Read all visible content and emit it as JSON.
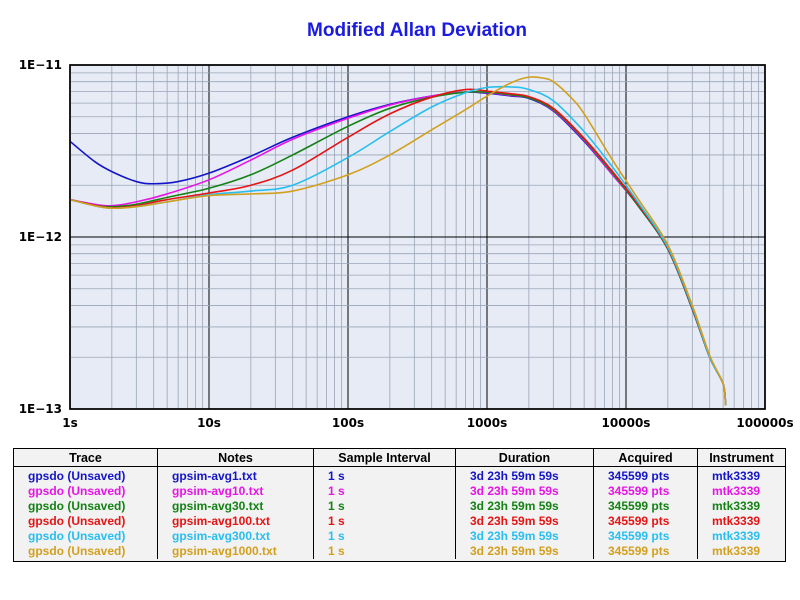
{
  "chart_data": {
    "type": "line",
    "title": "Modified Allan Deviation",
    "xscale": "log",
    "yscale": "log",
    "xlim": [
      1,
      100000
    ],
    "ylim": [
      1e-13,
      1e-11
    ],
    "x_tick_labels": [
      "1s",
      "10s",
      "100s",
      "1000s",
      "10000s",
      "100000s"
    ],
    "y_tick_labels": [
      "1E−11",
      "1E−12",
      "1E−13"
    ],
    "grid": true,
    "series": [
      {
        "name": "gpsdo (Unsaved)",
        "color": "#1414c8",
        "points": [
          [
            1,
            3.6e-12
          ],
          [
            1.5,
            2.75e-12
          ],
          [
            2,
            2.4e-12
          ],
          [
            3,
            2.1e-12
          ],
          [
            4,
            2.04e-12
          ],
          [
            6,
            2.1e-12
          ],
          [
            10,
            2.35e-12
          ],
          [
            20,
            2.95e-12
          ],
          [
            40,
            3.8e-12
          ],
          [
            100,
            5e-12
          ],
          [
            200,
            5.9e-12
          ],
          [
            400,
            6.6e-12
          ],
          [
            700,
            6.95e-12
          ],
          [
            1000,
            6.85e-12
          ],
          [
            1500,
            6.6e-12
          ],
          [
            2000,
            6.4e-12
          ],
          [
            3000,
            5.4e-12
          ],
          [
            5000,
            3.6e-12
          ],
          [
            8000,
            2.3e-12
          ],
          [
            12000,
            1.55e-12
          ],
          [
            20000,
            8.5e-13
          ],
          [
            30000,
            3.8e-13
          ],
          [
            40000,
            2e-13
          ],
          [
            50000,
            1.4e-13
          ],
          [
            52000,
            1.05e-13
          ]
        ]
      },
      {
        "name": "gpsdo (Unsaved)",
        "color": "#e614e6",
        "points": [
          [
            1,
            1.65e-12
          ],
          [
            1.5,
            1.55e-12
          ],
          [
            2,
            1.52e-12
          ],
          [
            3,
            1.6e-12
          ],
          [
            5,
            1.78e-12
          ],
          [
            10,
            2.15e-12
          ],
          [
            20,
            2.8e-12
          ],
          [
            40,
            3.7e-12
          ],
          [
            100,
            4.9e-12
          ],
          [
            200,
            5.85e-12
          ],
          [
            400,
            6.6e-12
          ],
          [
            700,
            6.95e-12
          ],
          [
            1000,
            6.9e-12
          ],
          [
            1500,
            6.65e-12
          ],
          [
            2000,
            6.45e-12
          ],
          [
            3000,
            5.45e-12
          ],
          [
            5000,
            3.65e-12
          ],
          [
            8000,
            2.3e-12
          ],
          [
            12000,
            1.55e-12
          ],
          [
            20000,
            8.5e-13
          ],
          [
            30000,
            3.8e-13
          ],
          [
            40000,
            2e-13
          ],
          [
            50000,
            1.4e-13
          ],
          [
            52000,
            1.05e-13
          ]
        ]
      },
      {
        "name": "gpsdo (Unsaved)",
        "color": "#148214",
        "points": [
          [
            1,
            1.65e-12
          ],
          [
            1.5,
            1.53e-12
          ],
          [
            2,
            1.5e-12
          ],
          [
            3,
            1.55e-12
          ],
          [
            5,
            1.7e-12
          ],
          [
            10,
            1.92e-12
          ],
          [
            20,
            2.3e-12
          ],
          [
            40,
            3e-12
          ],
          [
            100,
            4.4e-12
          ],
          [
            200,
            5.6e-12
          ],
          [
            400,
            6.5e-12
          ],
          [
            700,
            6.95e-12
          ],
          [
            1000,
            6.95e-12
          ],
          [
            1500,
            6.7e-12
          ],
          [
            2000,
            6.45e-12
          ],
          [
            3000,
            5.5e-12
          ],
          [
            5000,
            3.7e-12
          ],
          [
            8000,
            2.35e-12
          ],
          [
            12000,
            1.55e-12
          ],
          [
            20000,
            8.5e-13
          ],
          [
            30000,
            3.8e-13
          ],
          [
            40000,
            2e-13
          ],
          [
            50000,
            1.4e-13
          ],
          [
            52000,
            1.05e-13
          ]
        ]
      },
      {
        "name": "gpsdo (Unsaved)",
        "color": "#e61414",
        "points": [
          [
            1,
            1.65e-12
          ],
          [
            1.5,
            1.53e-12
          ],
          [
            2,
            1.48e-12
          ],
          [
            3,
            1.52e-12
          ],
          [
            5,
            1.65e-12
          ],
          [
            10,
            1.8e-12
          ],
          [
            20,
            2e-12
          ],
          [
            40,
            2.45e-12
          ],
          [
            100,
            3.8e-12
          ],
          [
            200,
            5.2e-12
          ],
          [
            400,
            6.5e-12
          ],
          [
            700,
            7.2e-12
          ],
          [
            1000,
            7.05e-12
          ],
          [
            1500,
            6.8e-12
          ],
          [
            2000,
            6.55e-12
          ],
          [
            3000,
            5.6e-12
          ],
          [
            5000,
            3.75e-12
          ],
          [
            8000,
            2.4e-12
          ],
          [
            12000,
            1.58e-12
          ],
          [
            20000,
            8.6e-13
          ],
          [
            30000,
            3.85e-13
          ],
          [
            40000,
            2e-13
          ],
          [
            50000,
            1.4e-13
          ],
          [
            52000,
            1.05e-13
          ]
        ]
      },
      {
        "name": "gpsdo (Unsaved)",
        "color": "#28bef0",
        "points": [
          [
            1,
            1.65e-12
          ],
          [
            1.5,
            1.52e-12
          ],
          [
            2,
            1.47e-12
          ],
          [
            3,
            1.5e-12
          ],
          [
            5,
            1.6e-12
          ],
          [
            10,
            1.76e-12
          ],
          [
            20,
            1.85e-12
          ],
          [
            40,
            2e-12
          ],
          [
            100,
            2.9e-12
          ],
          [
            200,
            4.1e-12
          ],
          [
            400,
            5.7e-12
          ],
          [
            700,
            6.9e-12
          ],
          [
            1000,
            7.4e-12
          ],
          [
            1500,
            7.45e-12
          ],
          [
            2000,
            7.2e-12
          ],
          [
            3000,
            6.2e-12
          ],
          [
            5000,
            4.1e-12
          ],
          [
            8000,
            2.55e-12
          ],
          [
            12000,
            1.62e-12
          ],
          [
            20000,
            8.7e-13
          ],
          [
            30000,
            3.9e-13
          ],
          [
            40000,
            2e-13
          ],
          [
            50000,
            1.4e-13
          ],
          [
            52000,
            1.05e-13
          ]
        ]
      },
      {
        "name": "gpsdo (Unsaved)",
        "color": "#d2a01e",
        "points": [
          [
            1,
            1.65e-12
          ],
          [
            1.5,
            1.52e-12
          ],
          [
            2,
            1.47e-12
          ],
          [
            3,
            1.5e-12
          ],
          [
            5,
            1.6e-12
          ],
          [
            10,
            1.74e-12
          ],
          [
            20,
            1.78e-12
          ],
          [
            40,
            1.85e-12
          ],
          [
            100,
            2.3e-12
          ],
          [
            200,
            3e-12
          ],
          [
            400,
            4.2e-12
          ],
          [
            700,
            5.5e-12
          ],
          [
            1000,
            6.6e-12
          ],
          [
            1500,
            7.9e-12
          ],
          [
            2000,
            8.5e-12
          ],
          [
            2500,
            8.4e-12
          ],
          [
            3000,
            8e-12
          ],
          [
            4000,
            6.5e-12
          ],
          [
            5000,
            5.2e-12
          ],
          [
            8000,
            2.8e-12
          ],
          [
            12000,
            1.7e-12
          ],
          [
            20000,
            9e-13
          ],
          [
            30000,
            4e-13
          ],
          [
            40000,
            2.05e-13
          ],
          [
            50000,
            1.4e-13
          ],
          [
            52000,
            1.05e-13
          ]
        ]
      }
    ]
  },
  "legend": {
    "headers": [
      "Trace",
      "Notes",
      "Sample Interval",
      "Duration",
      "Acquired",
      "Instrument"
    ],
    "rows": [
      {
        "trace": "gpsdo (Unsaved)",
        "notes": "gpsim-avg1.txt",
        "interval": "1 s",
        "duration": "3d 23h 59m 59s",
        "acquired": "345599 pts",
        "instrument": "mtk3339",
        "color": "#1414c8"
      },
      {
        "trace": "gpsdo (Unsaved)",
        "notes": "gpsim-avg10.txt",
        "interval": "1 s",
        "duration": "3d 23h 59m 59s",
        "acquired": "345599 pts",
        "instrument": "mtk3339",
        "color": "#e614e6"
      },
      {
        "trace": "gpsdo (Unsaved)",
        "notes": "gpsim-avg30.txt",
        "interval": "1 s",
        "duration": "3d 23h 59m 59s",
        "acquired": "345599 pts",
        "instrument": "mtk3339",
        "color": "#148214"
      },
      {
        "trace": "gpsdo (Unsaved)",
        "notes": "gpsim-avg100.txt",
        "interval": "1 s",
        "duration": "3d 23h 59m 59s",
        "acquired": "345599 pts",
        "instrument": "mtk3339",
        "color": "#e61414"
      },
      {
        "trace": "gpsdo (Unsaved)",
        "notes": "gpsim-avg300.txt",
        "interval": "1 s",
        "duration": "3d 23h 59m 59s",
        "acquired": "345599 pts",
        "instrument": "mtk3339",
        "color": "#28bef0"
      },
      {
        "trace": "gpsdo (Unsaved)",
        "notes": "gpsim-avg1000.txt",
        "interval": "1 s",
        "duration": "3d 23h 59m 59s",
        "acquired": "345599 pts",
        "instrument": "mtk3339",
        "color": "#d2a01e"
      }
    ]
  }
}
